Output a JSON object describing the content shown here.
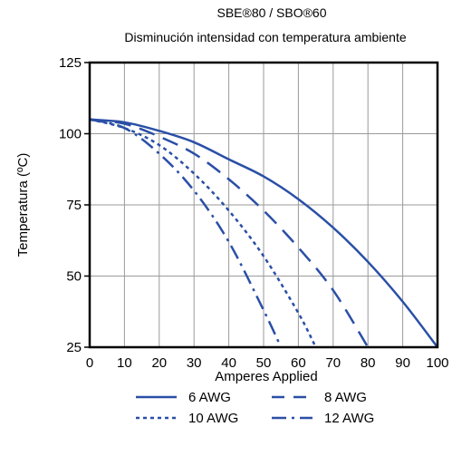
{
  "chart_data": {
    "type": "line",
    "title": "SBE®80 / SBO®60",
    "subtitle": "Disminución intensidad con temperatura ambiente",
    "xlabel": "Amperes Applied",
    "ylabel": "Temperatura (ºC)",
    "xlim": [
      0,
      100
    ],
    "ylim": [
      25,
      125
    ],
    "x_ticks": [
      0,
      10,
      20,
      30,
      40,
      50,
      60,
      70,
      80,
      90,
      100
    ],
    "y_ticks": [
      25,
      50,
      75,
      100,
      125
    ],
    "grid": true,
    "line_color": "#2a4fa6",
    "legend_position": "bottom",
    "series": [
      {
        "name": "6 AWG",
        "style": "solid",
        "x": [
          0,
          10,
          20,
          30,
          40,
          50,
          60,
          70,
          80,
          90,
          100
        ],
        "y": [
          105,
          104,
          101,
          97,
          91,
          85,
          77,
          67,
          55,
          41,
          25
        ]
      },
      {
        "name": "8 AWG",
        "style": "dashed",
        "x": [
          0,
          10,
          20,
          30,
          40,
          50,
          60,
          70,
          80
        ],
        "y": [
          105,
          103.5,
          99,
          93,
          84,
          73,
          60,
          45,
          25
        ]
      },
      {
        "name": "10 AWG",
        "style": "dotted",
        "x": [
          0,
          10,
          20,
          30,
          40,
          50,
          60,
          65
        ],
        "y": [
          105,
          102,
          96,
          86,
          73,
          57,
          37,
          25
        ]
      },
      {
        "name": "12 AWG",
        "style": "dashdot",
        "x": [
          0,
          10,
          20,
          30,
          40,
          50,
          55
        ],
        "y": [
          105,
          102,
          93,
          80,
          62,
          38,
          25
        ]
      }
    ]
  }
}
